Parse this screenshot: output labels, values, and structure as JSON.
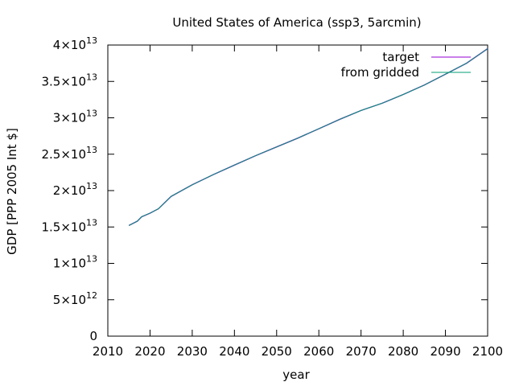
{
  "chart_data": {
    "type": "line",
    "title": "United States of America (ssp3, 5arcmin)",
    "xlabel": "year",
    "ylabel": "GDP [PPP 2005 Int $]",
    "xlim": [
      2010,
      2100
    ],
    "ylim": [
      0,
      40000000000000.0
    ],
    "x_ticks": [
      2010,
      2020,
      2030,
      2040,
      2050,
      2060,
      2070,
      2080,
      2090,
      2100
    ],
    "x_tick_labels": [
      "2010",
      "2020",
      "2030",
      "2040",
      "2050",
      "2060",
      "2070",
      "2080",
      "2090",
      "2100"
    ],
    "y_ticks": [
      {
        "value": 0,
        "mantissa": "0",
        "exp": ""
      },
      {
        "value": 5000000000000.0,
        "mantissa": "5×10",
        "exp": "12"
      },
      {
        "value": 10000000000000.0,
        "mantissa": "1×10",
        "exp": "13"
      },
      {
        "value": 15000000000000.0,
        "mantissa": "1.5×10",
        "exp": "13"
      },
      {
        "value": 20000000000000.0,
        "mantissa": "2×10",
        "exp": "13"
      },
      {
        "value": 25000000000000.0,
        "mantissa": "2.5×10",
        "exp": "13"
      },
      {
        "value": 30000000000000.0,
        "mantissa": "3×10",
        "exp": "13"
      },
      {
        "value": 35000000000000.0,
        "mantissa": "3.5×10",
        "exp": "13"
      },
      {
        "value": 40000000000000.0,
        "mantissa": "4×10",
        "exp": "13"
      }
    ],
    "grid": false,
    "legend": "top-right",
    "x": [
      2015,
      2017,
      2018,
      2020,
      2022,
      2025,
      2030,
      2035,
      2040,
      2045,
      2050,
      2055,
      2060,
      2065,
      2070,
      2075,
      2080,
      2085,
      2090,
      2095,
      2100
    ],
    "series": [
      {
        "name": "target",
        "color": "#9400d3",
        "values": [
          15200000000000.0,
          15800000000000.0,
          16400000000000.0,
          16900000000000.0,
          17500000000000.0,
          19200000000000.0,
          20800000000000.0,
          22200000000000.0,
          23500000000000.0,
          24800000000000.0,
          26000000000000.0,
          27200000000000.0,
          28500000000000.0,
          29800000000000.0,
          31000000000000.0,
          32000000000000.0,
          33200000000000.0,
          34500000000000.0,
          36000000000000.0,
          37500000000000.0,
          39500000000000.0
        ]
      },
      {
        "name": "from gridded",
        "color": "#009e73",
        "values": [
          15200000000000.0,
          15800000000000.0,
          16400000000000.0,
          16900000000000.0,
          17500000000000.0,
          19200000000000.0,
          20800000000000.0,
          22200000000000.0,
          23500000000000.0,
          24800000000000.0,
          26000000000000.0,
          27200000000000.0,
          28500000000000.0,
          29800000000000.0,
          31000000000000.0,
          32000000000000.0,
          33200000000000.0,
          34500000000000.0,
          36000000000000.0,
          37500000000000.0,
          39500000000000.0
        ]
      }
    ]
  }
}
